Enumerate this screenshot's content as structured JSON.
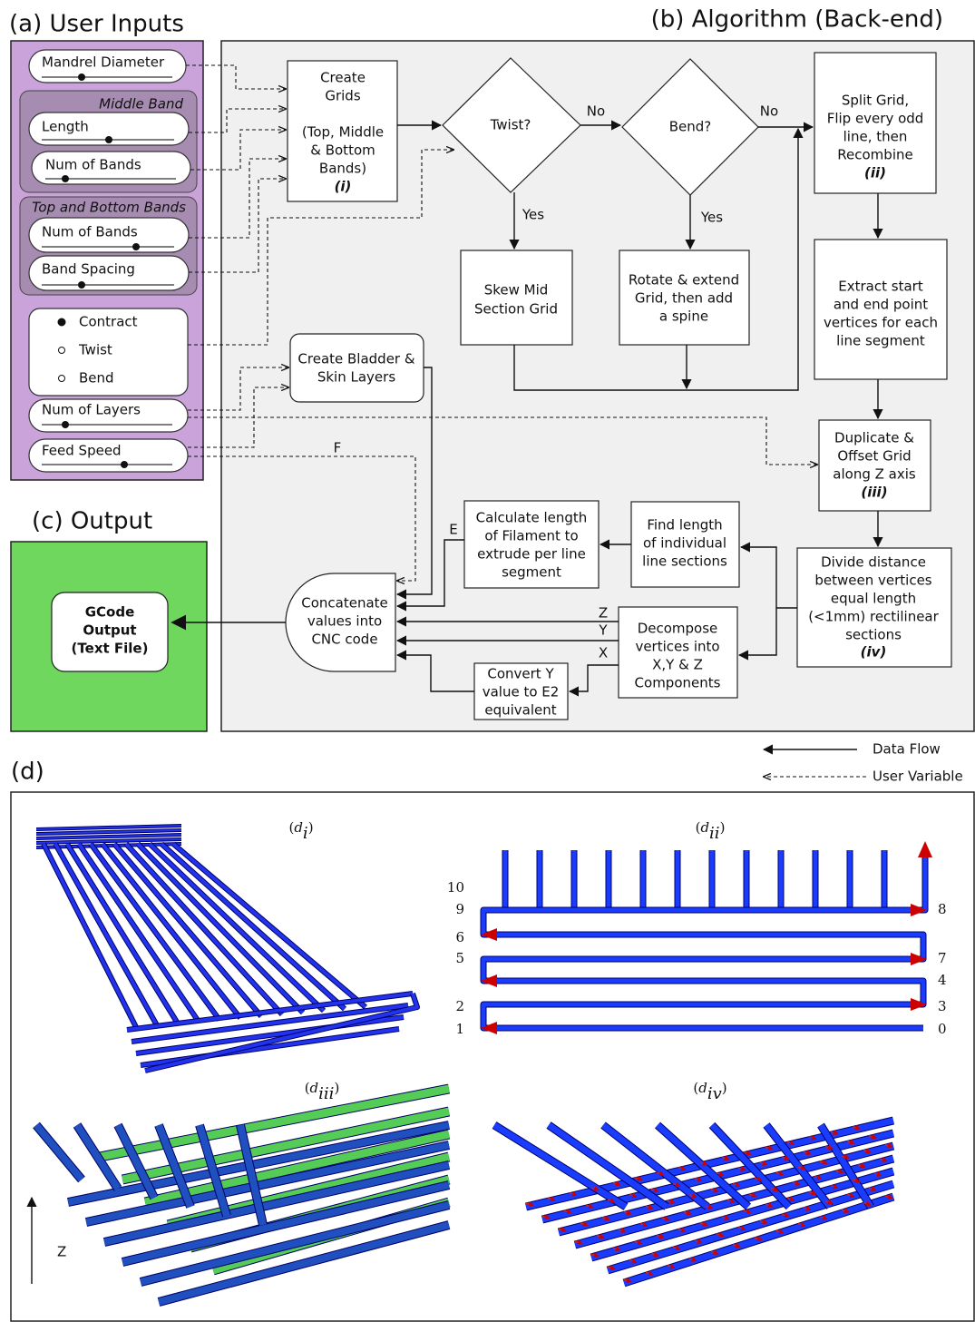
{
  "user_inputs": {
    "title": "(a) User Inputs",
    "mandrel_diameter": "Mandrel Diameter",
    "middle_band": {
      "heading": "Middle Band",
      "length": "Length",
      "num_bands": "Num of Bands"
    },
    "top_bottom_bands": {
      "heading": "Top and Bottom Bands",
      "num_bands": "Num of Bands",
      "band_spacing": "Band Spacing"
    },
    "modes": [
      "Contract",
      "Twist",
      "Bend"
    ],
    "num_layers": "Num of Layers",
    "feed_speed": "Feed Speed"
  },
  "algorithm": {
    "title": "(b) Algorithm (Back-end)",
    "nodes": {
      "create_grids": {
        "lines": [
          "Create",
          "Grids",
          "(Top, Middle",
          "& Bottom",
          "Bands)"
        ],
        "numeral": "(i)"
      },
      "twist": {
        "lines": [
          "Twist?"
        ]
      },
      "bend": {
        "lines": [
          "Bend?"
        ]
      },
      "split_grid": {
        "lines": [
          "Split Grid,",
          "Flip every odd",
          "line, then",
          "Recombine"
        ],
        "numeral": "(ii)"
      },
      "skew": {
        "lines": [
          "Skew Mid",
          "Section Grid"
        ]
      },
      "rotate": {
        "lines": [
          "Rotate & extend",
          "Grid, then add",
          "a spine"
        ]
      },
      "extract": {
        "lines": [
          "Extract start",
          "and end point",
          "vertices for each",
          "line segment"
        ]
      },
      "duplicate": {
        "lines": [
          "Duplicate &",
          "Offset Grid",
          "along Z axis"
        ],
        "numeral": "(iii)"
      },
      "divide": {
        "lines": [
          "Divide distance",
          "between vertices",
          "equal length",
          "(<1mm) rectilinear",
          "sections"
        ],
        "numeral": "(iv)"
      },
      "bladder": {
        "lines": [
          "Create Bladder &",
          "Skin Layers"
        ]
      },
      "calculate": {
        "lines": [
          "Calculate length",
          "of Filament to",
          "extrude per line",
          "segment"
        ]
      },
      "find": {
        "lines": [
          "Find length",
          "of individual",
          "line sections"
        ]
      },
      "decompose": {
        "lines": [
          "Decompose",
          "vertices into",
          "X,Y & Z",
          "Components"
        ]
      },
      "convert": {
        "lines": [
          "Convert Y",
          "value to E2",
          "equivalent"
        ]
      },
      "concatenate": {
        "lines": [
          "Concatenate",
          "values into",
          "CNC code"
        ]
      }
    },
    "edge_labels": {
      "twist_no": "No",
      "bend_no": "No",
      "twist_yes": "Yes",
      "bend_yes": "Yes",
      "feed": "F",
      "extrude": "E",
      "z": "Z",
      "y": "Y",
      "x": "X"
    }
  },
  "output": {
    "title": "(c) Output",
    "node": {
      "lines": [
        "GCode",
        "Output",
        "(Text File)"
      ]
    }
  },
  "legend": {
    "data_flow": "Data Flow",
    "user_variable": "User Variable"
  },
  "renders": {
    "title": "(d)",
    "panels": [
      {
        "open": "(",
        "symbol": "d",
        "subscript": "i",
        "close": ")"
      },
      {
        "open": "(",
        "symbol": "d",
        "subscript": "ii",
        "close": ")"
      },
      {
        "open": "(",
        "symbol": "d",
        "subscript": "iii",
        "close": ")"
      },
      {
        "open": "(",
        "symbol": "d",
        "subscript": "iv",
        "close": ")"
      }
    ],
    "sequence_left": [
      "10",
      "9",
      "6",
      "5",
      "2",
      "1"
    ],
    "sequence_right": [
      "8",
      "7",
      "4",
      "3",
      "0"
    ],
    "z_axis": "Z"
  }
}
